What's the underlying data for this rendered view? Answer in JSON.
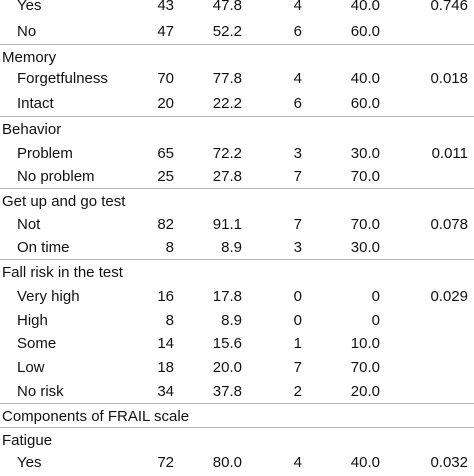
{
  "rows": [
    {
      "kind": "item",
      "label": "Yes",
      "n1": "43",
      "p1": "47.8",
      "n2": "4",
      "p2": "40.0",
      "p": "0.746"
    },
    {
      "kind": "item",
      "label": "No",
      "n1": "47",
      "p1": "52.2",
      "n2": "6",
      "p2": "60.0",
      "p": ""
    },
    {
      "kind": "section",
      "label": "Memory"
    },
    {
      "kind": "item",
      "label": "Forgetfulness",
      "n1": "70",
      "p1": "77.8",
      "n2": "4",
      "p2": "40.0",
      "p": "0.018"
    },
    {
      "kind": "item",
      "label": "Intact",
      "n1": "20",
      "p1": "22.2",
      "n2": "6",
      "p2": "60.0",
      "p": ""
    },
    {
      "kind": "section",
      "label": "Behavior"
    },
    {
      "kind": "item",
      "label": "Problem",
      "n1": "65",
      "p1": "72.2",
      "n2": "3",
      "p2": "30.0",
      "p": "0.011"
    },
    {
      "kind": "item",
      "label": "No problem",
      "n1": "25",
      "p1": "27.8",
      "n2": "7",
      "p2": "70.0",
      "p": ""
    },
    {
      "kind": "section",
      "label": "Get up and go test"
    },
    {
      "kind": "item",
      "label": "Not",
      "n1": "82",
      "p1": "91.1",
      "n2": "7",
      "p2": "70.0",
      "p": "0.078"
    },
    {
      "kind": "item",
      "label": "On time",
      "n1": "8",
      "p1": "8.9",
      "n2": "3",
      "p2": "30.0",
      "p": ""
    },
    {
      "kind": "section",
      "label": "Fall risk in the test"
    },
    {
      "kind": "item",
      "label": "Very high",
      "n1": "16",
      "p1": "17.8",
      "n2": "0",
      "p2": "0",
      "p": "0.029"
    },
    {
      "kind": "item",
      "label": "High",
      "n1": "8",
      "p1": "8.9",
      "n2": "0",
      "p2": "0",
      "p": ""
    },
    {
      "kind": "item",
      "label": "Some",
      "n1": "14",
      "p1": "15.6",
      "n2": "1",
      "p2": "10.0",
      "p": ""
    },
    {
      "kind": "item",
      "label": "Low",
      "n1": "18",
      "p1": "20.0",
      "n2": "7",
      "p2": "70.0",
      "p": ""
    },
    {
      "kind": "item",
      "label": "No risk",
      "n1": "34",
      "p1": "37.8",
      "n2": "2",
      "p2": "20.0",
      "p": ""
    },
    {
      "kind": "section",
      "label": "Components of FRAIL scale"
    },
    {
      "kind": "section",
      "label": "Fatigue"
    },
    {
      "kind": "item",
      "label": "Yes",
      "n1": "72",
      "p1": "80.0",
      "n2": "4",
      "p2": "40.0",
      "p": "0.032"
    }
  ]
}
